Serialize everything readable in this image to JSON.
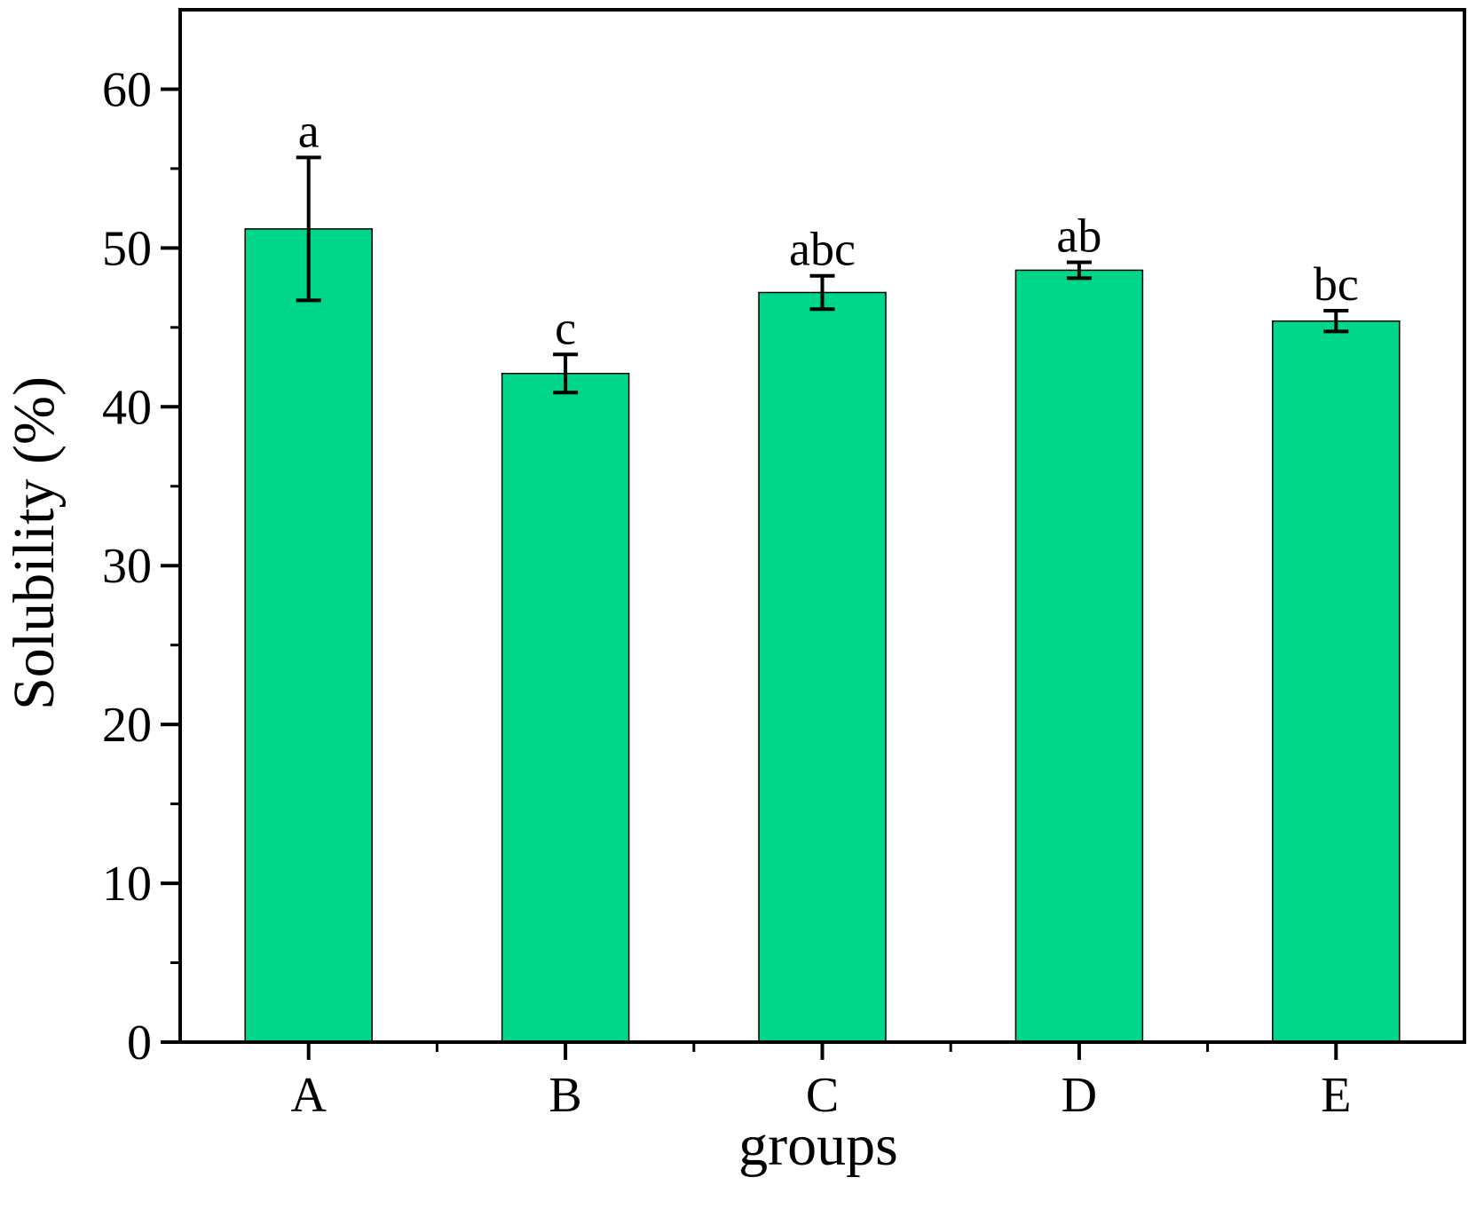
{
  "chart_data": {
    "type": "bar",
    "title": "",
    "xlabel": "groups",
    "ylabel": "Solubility (%)",
    "categories": [
      "A",
      "B",
      "C",
      "D",
      "E"
    ],
    "values": [
      51.2,
      42.1,
      47.2,
      48.6,
      45.4
    ],
    "errors": [
      4.5,
      1.2,
      1.05,
      0.5,
      0.65
    ],
    "significance_labels": [
      "a",
      "c",
      "abc",
      "ab",
      "bc"
    ],
    "ylim": [
      0,
      65
    ],
    "yticks": [
      0,
      10,
      20,
      30,
      40,
      50,
      60
    ],
    "grid": false,
    "legend": "none",
    "bar_color": "#00D68A",
    "bar_edge_color": "#000000",
    "error_bar_color": "#000000"
  }
}
